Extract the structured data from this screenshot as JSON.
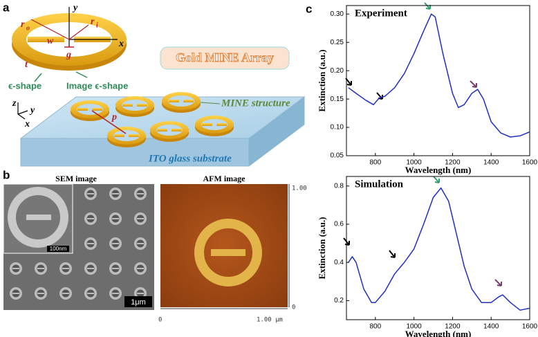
{
  "panel_labels": [
    "a",
    "b",
    "c"
  ],
  "ring_labels": [
    {
      "text": "r",
      "sub": "o"
    },
    {
      "text": "r",
      "sub": "i"
    },
    "w",
    "g",
    "t",
    "x",
    "y"
  ],
  "shape_labels": [
    "ϵ-shape",
    "Image ϵ-shape"
  ],
  "diagram_title": "Gold MINE Array",
  "array_axes": [
    "z",
    "y",
    "x"
  ],
  "period": "p",
  "structure_label": "MINE structure",
  "substrate_label": "ITO glass substrate",
  "sem": {
    "title": "SEM image",
    "inset_scale": "100nm",
    "scale": "1μm"
  },
  "afm": {
    "title": "AFM image",
    "y_top": "1.00",
    "y_bottom": "0",
    "x_left": "0",
    "x_right": "1.00 μm"
  },
  "chart_data": [
    {
      "type": "line",
      "title": "Experiment",
      "xlabel": "Wavelength (nm)",
      "ylabel": "Extinction (a.u.)",
      "x": [
        660,
        700,
        750,
        790,
        820,
        850,
        900,
        950,
        1000,
        1050,
        1090,
        1110,
        1150,
        1200,
        1230,
        1260,
        1300,
        1330,
        1360,
        1400,
        1450,
        1500,
        1550,
        1600
      ],
      "values": [
        0.17,
        0.16,
        0.148,
        0.14,
        0.152,
        0.155,
        0.17,
        0.195,
        0.23,
        0.27,
        0.3,
        0.295,
        0.23,
        0.16,
        0.135,
        0.14,
        0.16,
        0.167,
        0.15,
        0.11,
        0.09,
        0.083,
        0.085,
        0.092
      ],
      "color": "#1f2fbf",
      "xlim": [
        650,
        1600
      ],
      "ylim": [
        0.05,
        0.315
      ],
      "xticks": [
        800,
        1000,
        1200,
        1400,
        1600
      ],
      "yticks": [
        0.05,
        {
          "value": 0.1,
          "label": "0.10"
        },
        0.15,
        {
          "value": 0.2,
          "label": "0.20"
        },
        0.25,
        {
          "value": 0.3,
          "label": "0.30"
        }
      ]
    },
    {
      "type": "line",
      "title": "Simulation",
      "xlabel": "Wavelength (nm)",
      "ylabel": "Extinction (a.u.)",
      "x": [
        660,
        680,
        700,
        740,
        780,
        800,
        850,
        900,
        950,
        1000,
        1050,
        1100,
        1140,
        1180,
        1220,
        1260,
        1300,
        1350,
        1400,
        1440,
        1460,
        1500,
        1550,
        1600
      ],
      "values": [
        0.4,
        0.43,
        0.4,
        0.26,
        0.19,
        0.19,
        0.25,
        0.34,
        0.4,
        0.47,
        0.6,
        0.74,
        0.79,
        0.72,
        0.55,
        0.38,
        0.26,
        0.19,
        0.19,
        0.22,
        0.23,
        0.19,
        0.15,
        0.16
      ],
      "color": "#1f2fbf",
      "xlim": [
        650,
        1600
      ],
      "ylim": [
        0.1,
        0.85
      ],
      "xticks": [
        800,
        1000,
        1200,
        1400,
        1600
      ],
      "yticks": [
        0.2,
        0.4,
        0.6,
        0.8
      ]
    }
  ]
}
